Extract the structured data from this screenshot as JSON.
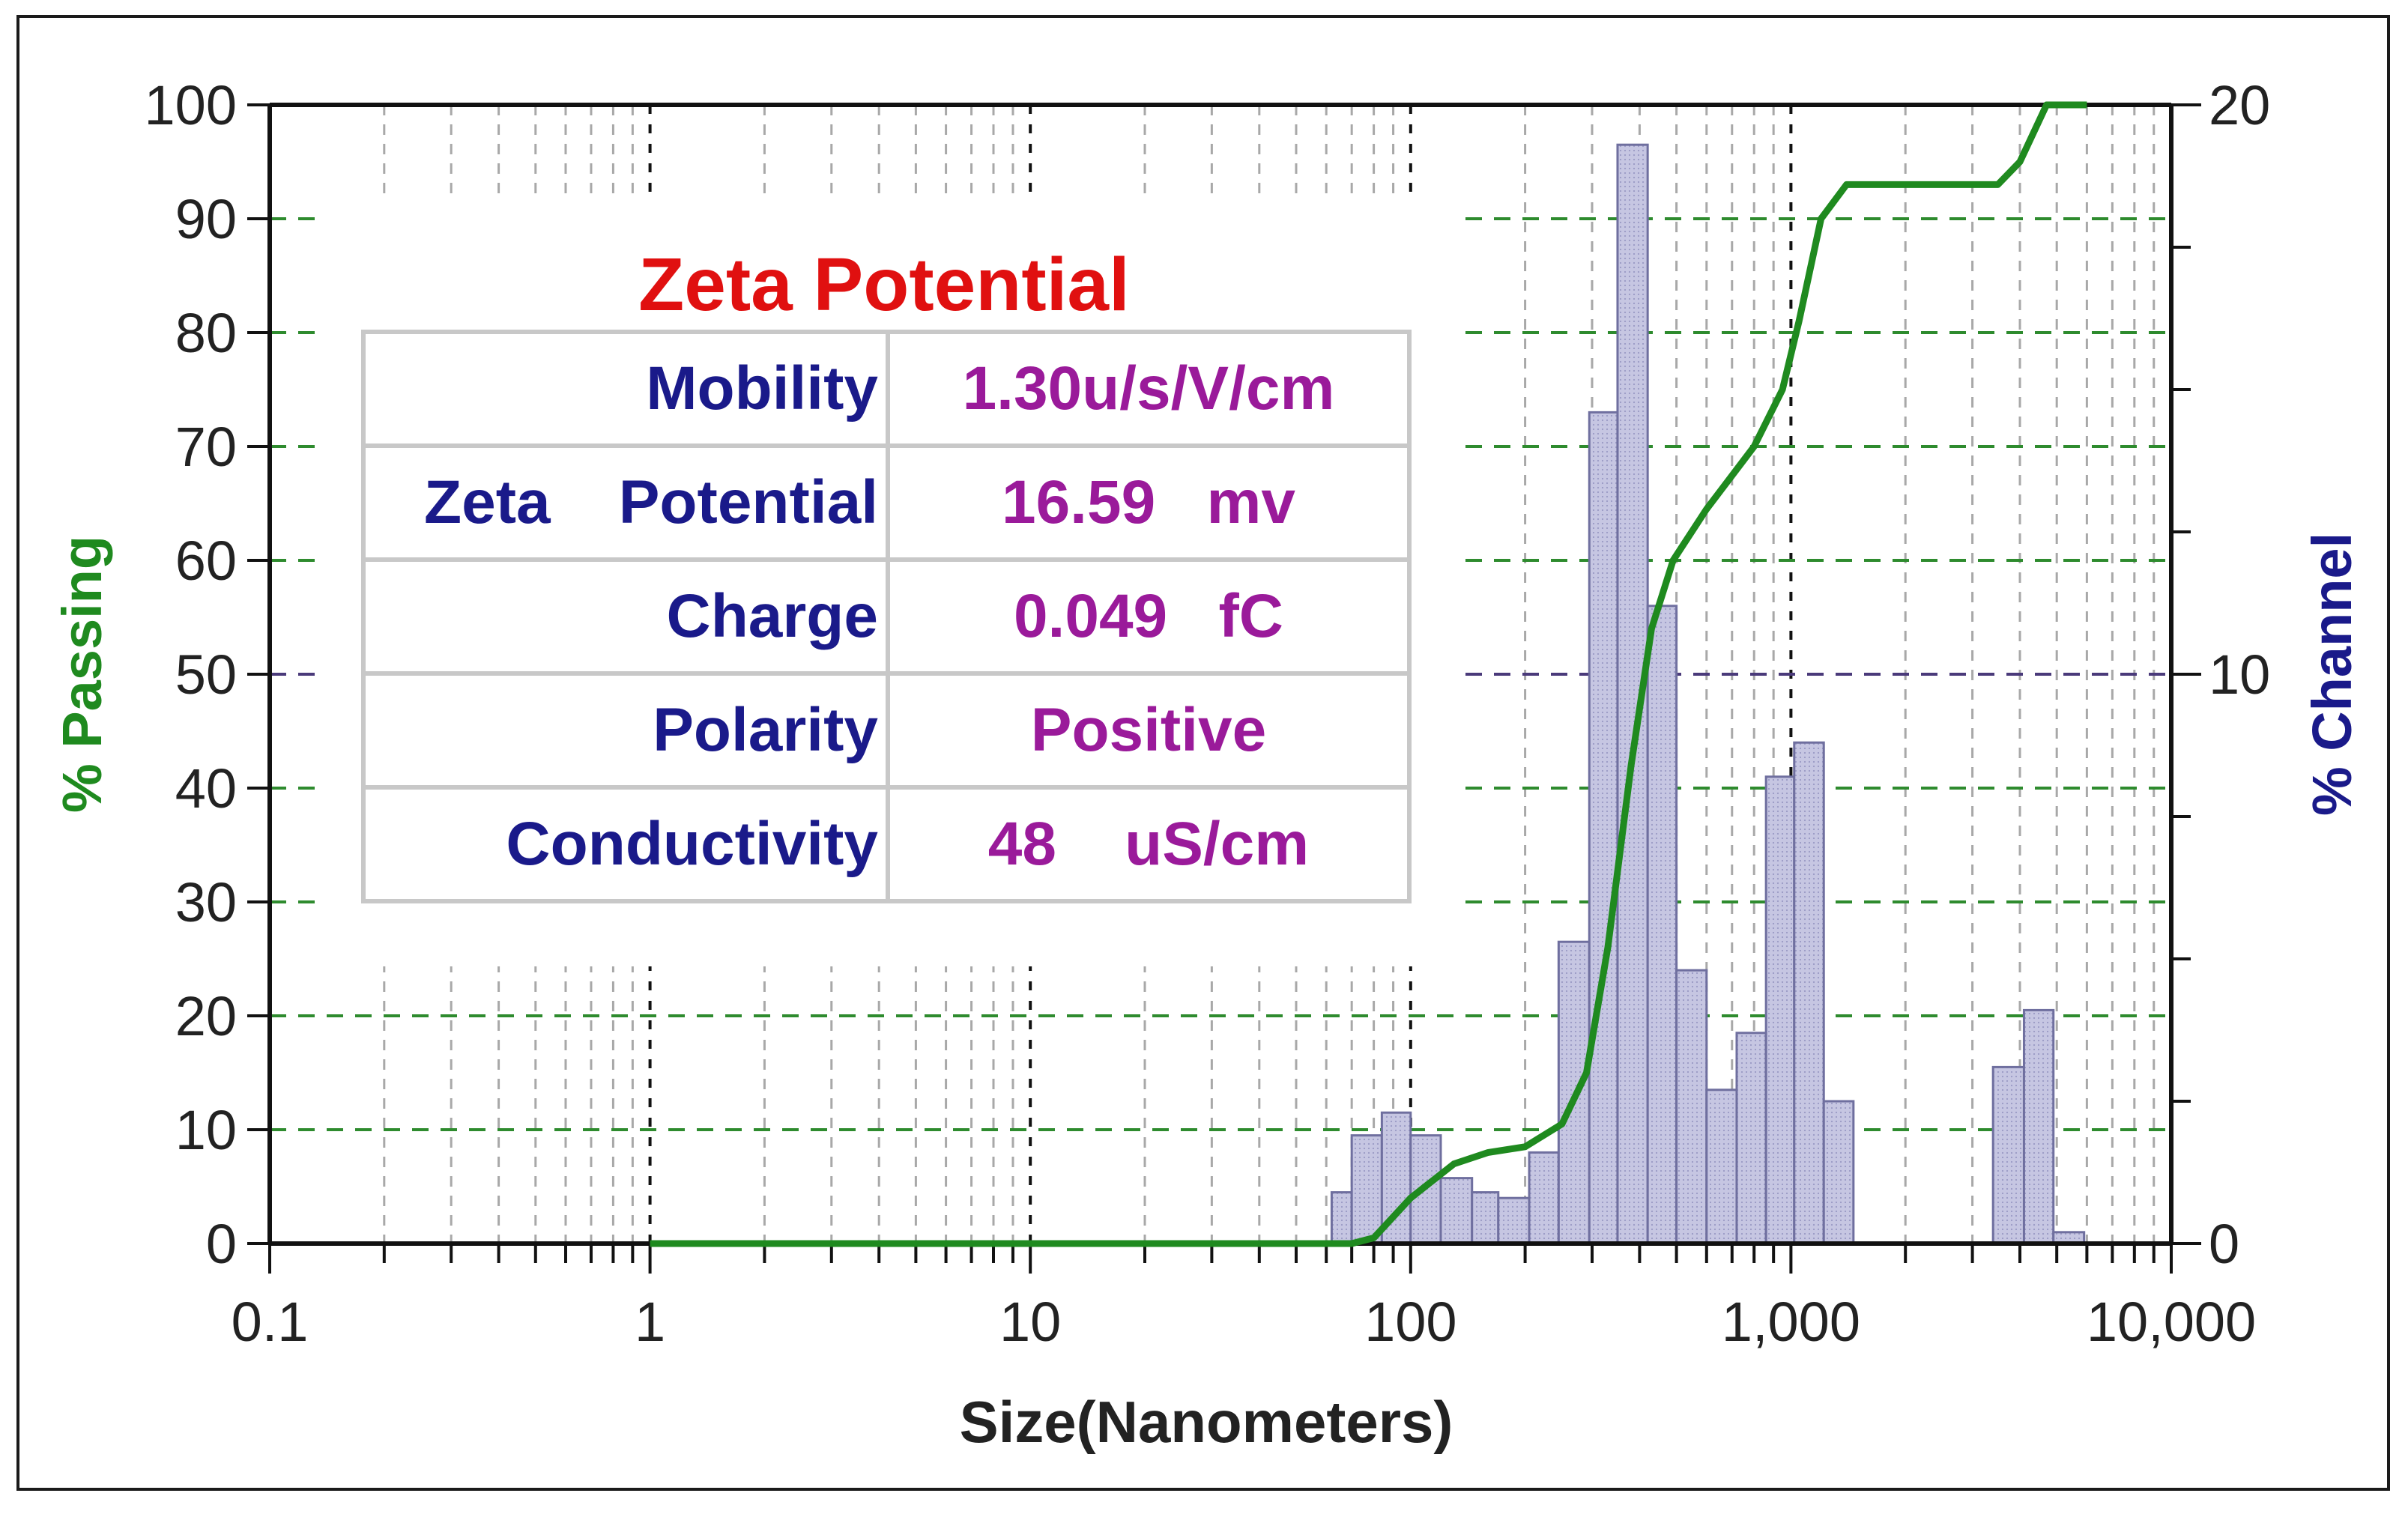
{
  "chart_data": {
    "type": "bar",
    "title": "",
    "xlabel": "Size(Nanometers)",
    "ylabel_left": "% Passing",
    "ylabel_right": "% Channel",
    "x_scale": "log",
    "xlim": [
      0.1,
      10000
    ],
    "ylim_left": [
      0,
      100
    ],
    "ylim_right": [
      0,
      20
    ],
    "x_ticks": [
      {
        "value": 0.1,
        "label": "0.1"
      },
      {
        "value": 1,
        "label": "1"
      },
      {
        "value": 10,
        "label": "10"
      },
      {
        "value": 100,
        "label": "100"
      },
      {
        "value": 1000,
        "label": "1,000"
      },
      {
        "value": 10000,
        "label": "10,000"
      }
    ],
    "y_left_ticks": [
      {
        "value": 0,
        "label": "0"
      },
      {
        "value": 10,
        "label": "10"
      },
      {
        "value": 20,
        "label": "20"
      },
      {
        "value": 30,
        "label": "30"
      },
      {
        "value": 40,
        "label": "40"
      },
      {
        "value": 50,
        "label": "50"
      },
      {
        "value": 60,
        "label": "60"
      },
      {
        "value": 70,
        "label": "70"
      },
      {
        "value": 80,
        "label": "80"
      },
      {
        "value": 90,
        "label": "90"
      },
      {
        "value": 100,
        "label": "100"
      }
    ],
    "y_right_ticks": [
      {
        "value": 0,
        "label": "0"
      },
      {
        "value": 10,
        "label": "10"
      },
      {
        "value": 20,
        "label": "20"
      }
    ],
    "grid": true,
    "channel_series": {
      "axis": "right",
      "bins": [
        {
          "x0": 62,
          "x1": 70,
          "value": 0.9
        },
        {
          "x0": 70,
          "x1": 84,
          "value": 1.9
        },
        {
          "x0": 84,
          "x1": 100,
          "value": 2.3
        },
        {
          "x0": 100,
          "x1": 120,
          "value": 1.9
        },
        {
          "x0": 120,
          "x1": 145,
          "value": 1.15
        },
        {
          "x0": 145,
          "x1": 170,
          "value": 0.9
        },
        {
          "x0": 170,
          "x1": 205,
          "value": 0.8
        },
        {
          "x0": 205,
          "x1": 245,
          "value": 1.6
        },
        {
          "x0": 245,
          "x1": 295,
          "value": 5.3
        },
        {
          "x0": 295,
          "x1": 350,
          "value": 14.6
        },
        {
          "x0": 350,
          "x1": 420,
          "value": 19.3
        },
        {
          "x0": 420,
          "x1": 500,
          "value": 11.2
        },
        {
          "x0": 500,
          "x1": 600,
          "value": 4.8
        },
        {
          "x0": 600,
          "x1": 720,
          "value": 2.7
        },
        {
          "x0": 720,
          "x1": 860,
          "value": 3.7
        },
        {
          "x0": 860,
          "x1": 1020,
          "value": 8.2
        },
        {
          "x0": 1020,
          "x1": 1220,
          "value": 8.8
        },
        {
          "x0": 1220,
          "x1": 1460,
          "value": 2.5
        },
        {
          "x0": 3400,
          "x1": 4100,
          "value": 3.1
        },
        {
          "x0": 4100,
          "x1": 4900,
          "value": 4.1
        },
        {
          "x0": 4900,
          "x1": 5900,
          "value": 0.2
        }
      ]
    },
    "passing_series": {
      "axis": "left",
      "points": [
        [
          1,
          0
        ],
        [
          70,
          0
        ],
        [
          80,
          0.5
        ],
        [
          100,
          4
        ],
        [
          130,
          7
        ],
        [
          160,
          8
        ],
        [
          200,
          8.5
        ],
        [
          250,
          10.5
        ],
        [
          290,
          15
        ],
        [
          330,
          26
        ],
        [
          380,
          42
        ],
        [
          430,
          54
        ],
        [
          490,
          60
        ],
        [
          600,
          64.5
        ],
        [
          800,
          70
        ],
        [
          950,
          75
        ],
        [
          1050,
          81
        ],
        [
          1200,
          90
        ],
        [
          1400,
          93
        ],
        [
          3500,
          93
        ],
        [
          4000,
          95
        ],
        [
          4700,
          100
        ],
        [
          6000,
          100
        ]
      ]
    },
    "annotations": {
      "dashed_levels_left": [
        10,
        20,
        30,
        40,
        50,
        60,
        70,
        80,
        90
      ]
    }
  },
  "info_panel": {
    "title": "Zeta Potential",
    "rows": [
      {
        "label": "Mobility",
        "value": "1.30u/s/V/cm"
      },
      {
        "label": "Zeta    Potential",
        "value": "16.59   mv"
      },
      {
        "label": "Charge",
        "value": "0.049   fC"
      },
      {
        "label": "Polarity",
        "value": "Positive"
      },
      {
        "label": "Conductivity",
        "value": "48    uS/cm"
      }
    ]
  },
  "colors": {
    "passing_line": "#1f8a1f",
    "channel_bars": "#b8b8d8",
    "channel_bar_edge": "#6f6f9f",
    "title_red": "#e01010",
    "label_blue": "#1a1a8a",
    "value_purple": "#9a1a9a",
    "grid_green": "#2e8b2e",
    "grid_purple": "#4a3a7a"
  }
}
